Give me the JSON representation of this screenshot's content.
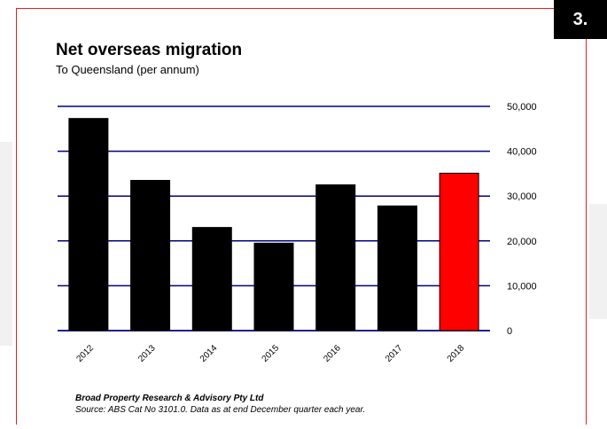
{
  "slide": {
    "number": "3."
  },
  "footer": {
    "company": "Broad Property Research & Advisory Pty Ltd",
    "source": "Source: ABS Cat No 3101.0. Data as at end December quarter each year."
  },
  "colors": {
    "bar": "#000000",
    "highlight_bar": "#ff0000",
    "gridline": "#000080",
    "frame": "#e21f1f"
  },
  "chart_data": {
    "type": "bar",
    "title": "Net overseas migration",
    "subtitle": "To Queensland (per annum)",
    "xlabel": "",
    "ylabel": "",
    "categories": [
      "2012",
      "2013",
      "2014",
      "2015",
      "2016",
      "2017",
      "2018"
    ],
    "values": [
      47300,
      33500,
      23000,
      19500,
      32500,
      27800,
      35100
    ],
    "highlight_index": 6,
    "ylim": [
      0,
      50000
    ],
    "yticks": [
      0,
      10000,
      20000,
      30000,
      40000,
      50000
    ],
    "ytick_labels": [
      "0",
      "10,000",
      "20,000",
      "30,000",
      "40,000",
      "50,000"
    ],
    "y_axis_side": "right",
    "grid": true,
    "legend": "none"
  }
}
